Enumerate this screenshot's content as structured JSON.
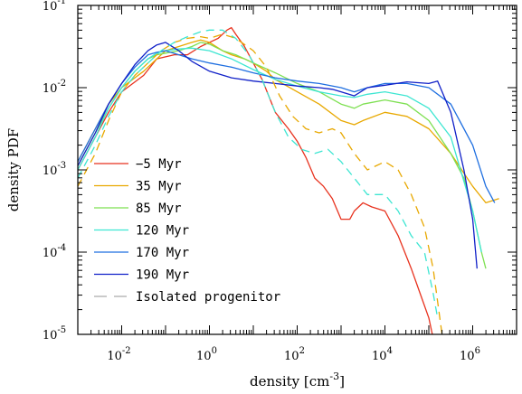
{
  "chart_data": {
    "type": "line",
    "xscale": "log",
    "yscale": "log",
    "xlim": [
      0.001,
      10000000
    ],
    "ylim": [
      1e-05,
      0.1
    ],
    "xlabel": "density [cm",
    "xlabel_sup": "-3",
    "xlabel_close": "]",
    "ylabel": "density PDF",
    "x_ticks": [
      {
        "value": 0.01,
        "base": "10",
        "exp": "-2"
      },
      {
        "value": 1,
        "base": "10",
        "exp": "0"
      },
      {
        "value": 100,
        "base": "10",
        "exp": "2"
      },
      {
        "value": 10000,
        "base": "10",
        "exp": "4"
      },
      {
        "value": 1000000,
        "base": "10",
        "exp": "6"
      }
    ],
    "y_ticks": [
      {
        "value": 1e-05,
        "base": "10",
        "exp": "-5"
      },
      {
        "value": 0.0001,
        "base": "10",
        "exp": "-4"
      },
      {
        "value": 0.001,
        "base": "10",
        "exp": "-3"
      },
      {
        "value": 0.01,
        "base": "10",
        "exp": "-2"
      },
      {
        "value": 0.1,
        "base": "10",
        "exp": "-1"
      }
    ],
    "legend_position": "bottom-left",
    "series": [
      {
        "name": "−5 Myr",
        "color": "#e8321e",
        "style": "solid",
        "points": [
          [
            -3,
            -3.0
          ],
          [
            -2.6,
            -2.6
          ],
          [
            -2.3,
            -2.3
          ],
          [
            -2,
            -2.05
          ],
          [
            -1.5,
            -1.85
          ],
          [
            -1.2,
            -1.65
          ],
          [
            -0.8,
            -1.6
          ],
          [
            -0.5,
            -1.6
          ],
          [
            -0.2,
            -1.5
          ],
          [
            0,
            -1.45
          ],
          [
            0.2,
            -1.4
          ],
          [
            0.4,
            -1.3
          ],
          [
            0.5,
            -1.27
          ],
          [
            0.6,
            -1.35
          ],
          [
            0.8,
            -1.5
          ],
          [
            1,
            -1.7
          ],
          [
            1.2,
            -1.9
          ],
          [
            1.5,
            -2.3
          ],
          [
            1.8,
            -2.5
          ],
          [
            2,
            -2.65
          ],
          [
            2.2,
            -2.85
          ],
          [
            2.4,
            -3.1
          ],
          [
            2.6,
            -3.2
          ],
          [
            2.8,
            -3.35
          ],
          [
            3,
            -3.6
          ],
          [
            3.2,
            -3.6
          ],
          [
            3.3,
            -3.5
          ],
          [
            3.5,
            -3.4
          ],
          [
            3.7,
            -3.45
          ],
          [
            4,
            -3.5
          ],
          [
            4.3,
            -3.8
          ],
          [
            4.6,
            -4.2
          ],
          [
            4.8,
            -4.5
          ],
          [
            5,
            -4.8
          ],
          [
            5.2,
            -5.3
          ],
          [
            5.3,
            -5.4
          ]
        ]
      },
      {
        "name": "35 Myr",
        "color": "#e8a800",
        "style": "solid",
        "points": [
          [
            -3,
            -2.9
          ],
          [
            -2.6,
            -2.5
          ],
          [
            -2.3,
            -2.2
          ],
          [
            -2,
            -2.0
          ],
          [
            -1.5,
            -1.8
          ],
          [
            -1.2,
            -1.65
          ],
          [
            -1,
            -1.55
          ],
          [
            -0.7,
            -1.5
          ],
          [
            -0.4,
            -1.45
          ],
          [
            -0.2,
            -1.42
          ],
          [
            0,
            -1.45
          ],
          [
            0.3,
            -1.55
          ],
          [
            0.5,
            -1.6
          ],
          [
            0.8,
            -1.65
          ],
          [
            1,
            -1.7
          ],
          [
            1.3,
            -1.8
          ],
          [
            1.5,
            -1.9
          ],
          [
            2,
            -2.05
          ],
          [
            2.5,
            -2.2
          ],
          [
            3,
            -2.4
          ],
          [
            3.3,
            -2.45
          ],
          [
            3.5,
            -2.4
          ],
          [
            4,
            -2.3
          ],
          [
            4.5,
            -2.35
          ],
          [
            5,
            -2.5
          ],
          [
            5.5,
            -2.8
          ],
          [
            6,
            -3.2
          ],
          [
            6.3,
            -3.4
          ],
          [
            6.6,
            -3.35
          ]
        ]
      },
      {
        "name": "85 Myr",
        "color": "#7ee052",
        "style": "solid",
        "points": [
          [
            -3,
            -2.95
          ],
          [
            -2.6,
            -2.55
          ],
          [
            -2.3,
            -2.25
          ],
          [
            -2,
            -2.0
          ],
          [
            -1.7,
            -1.8
          ],
          [
            -1.4,
            -1.65
          ],
          [
            -1.2,
            -1.6
          ],
          [
            -1,
            -1.58
          ],
          [
            -0.7,
            -1.55
          ],
          [
            -0.4,
            -1.5
          ],
          [
            -0.2,
            -1.45
          ],
          [
            0,
            -1.47
          ],
          [
            0.3,
            -1.55
          ],
          [
            0.6,
            -1.6
          ],
          [
            1,
            -1.7
          ],
          [
            1.5,
            -1.82
          ],
          [
            2,
            -1.95
          ],
          [
            2.5,
            -2.05
          ],
          [
            3,
            -2.2
          ],
          [
            3.3,
            -2.25
          ],
          [
            3.5,
            -2.2
          ],
          [
            4,
            -2.15
          ],
          [
            4.5,
            -2.2
          ],
          [
            5,
            -2.4
          ],
          [
            5.5,
            -2.8
          ],
          [
            5.8,
            -3.1
          ],
          [
            6,
            -3.5
          ],
          [
            6.2,
            -4.0
          ],
          [
            6.3,
            -4.2
          ]
        ]
      },
      {
        "name": "120 Myr",
        "color": "#3ee6d2",
        "style": "solid",
        "points": [
          [
            -3,
            -3.0
          ],
          [
            -2.6,
            -2.6
          ],
          [
            -2.3,
            -2.25
          ],
          [
            -2,
            -2.0
          ],
          [
            -1.7,
            -1.8
          ],
          [
            -1.4,
            -1.65
          ],
          [
            -1.2,
            -1.58
          ],
          [
            -1,
            -1.55
          ],
          [
            -0.7,
            -1.53
          ],
          [
            -0.4,
            -1.52
          ],
          [
            0,
            -1.55
          ],
          [
            0.5,
            -1.65
          ],
          [
            1,
            -1.78
          ],
          [
            1.5,
            -1.9
          ],
          [
            2,
            -1.98
          ],
          [
            2.5,
            -2.05
          ],
          [
            3,
            -2.1
          ],
          [
            3.3,
            -2.12
          ],
          [
            3.6,
            -2.08
          ],
          [
            4,
            -2.05
          ],
          [
            4.5,
            -2.1
          ],
          [
            5,
            -2.25
          ],
          [
            5.5,
            -2.6
          ],
          [
            6,
            -3.5
          ],
          [
            6.2,
            -4.0
          ]
        ]
      },
      {
        "name": "170 Myr",
        "color": "#1f6fe0",
        "style": "solid",
        "points": [
          [
            -3,
            -2.9
          ],
          [
            -2.6,
            -2.5
          ],
          [
            -2.3,
            -2.2
          ],
          [
            -2,
            -1.95
          ],
          [
            -1.7,
            -1.75
          ],
          [
            -1.4,
            -1.6
          ],
          [
            -1.2,
            -1.57
          ],
          [
            -1,
            -1.55
          ],
          [
            -0.7,
            -1.6
          ],
          [
            -0.4,
            -1.65
          ],
          [
            0,
            -1.7
          ],
          [
            0.5,
            -1.75
          ],
          [
            1,
            -1.82
          ],
          [
            1.5,
            -1.88
          ],
          [
            2,
            -1.92
          ],
          [
            2.5,
            -1.95
          ],
          [
            3,
            -2.0
          ],
          [
            3.3,
            -2.05
          ],
          [
            3.6,
            -2.0
          ],
          [
            4,
            -1.95
          ],
          [
            4.5,
            -1.95
          ],
          [
            5,
            -2.0
          ],
          [
            5.5,
            -2.2
          ],
          [
            6,
            -2.7
          ],
          [
            6.3,
            -3.2
          ],
          [
            6.5,
            -3.4
          ]
        ]
      },
      {
        "name": "190 Myr",
        "color": "#1020c8",
        "style": "solid",
        "points": [
          [
            -3,
            -2.95
          ],
          [
            -2.6,
            -2.55
          ],
          [
            -2.3,
            -2.2
          ],
          [
            -2,
            -1.95
          ],
          [
            -1.7,
            -1.72
          ],
          [
            -1.4,
            -1.55
          ],
          [
            -1.2,
            -1.48
          ],
          [
            -1,
            -1.45
          ],
          [
            -0.7,
            -1.55
          ],
          [
            -0.4,
            -1.68
          ],
          [
            0,
            -1.8
          ],
          [
            0.5,
            -1.88
          ],
          [
            1,
            -1.92
          ],
          [
            1.5,
            -1.95
          ],
          [
            2,
            -1.98
          ],
          [
            2.5,
            -2.0
          ],
          [
            2.8,
            -2.02
          ],
          [
            3,
            -2.05
          ],
          [
            3.3,
            -2.1
          ],
          [
            3.6,
            -2.0
          ],
          [
            4,
            -1.97
          ],
          [
            4.5,
            -1.93
          ],
          [
            5,
            -1.95
          ],
          [
            5.2,
            -1.92
          ],
          [
            5.5,
            -2.3
          ],
          [
            5.8,
            -3.0
          ],
          [
            6,
            -3.6
          ],
          [
            6.1,
            -4.2
          ]
        ]
      },
      {
        "name": "Isolated progenitor",
        "color": "#aaaaaa",
        "style": "dashed",
        "legend_only": true,
        "points": []
      },
      {
        "name": "",
        "color": "#e8a800",
        "style": "dashed",
        "legend_only": false,
        "points": [
          [
            -3,
            -3.2
          ],
          [
            -2.6,
            -2.8
          ],
          [
            -2.3,
            -2.4
          ],
          [
            -2,
            -2.05
          ],
          [
            -1.7,
            -1.85
          ],
          [
            -1.4,
            -1.7
          ],
          [
            -1.1,
            -1.55
          ],
          [
            -0.8,
            -1.45
          ],
          [
            -0.5,
            -1.4
          ],
          [
            -0.2,
            -1.38
          ],
          [
            0,
            -1.4
          ],
          [
            0.3,
            -1.35
          ],
          [
            0.6,
            -1.4
          ],
          [
            1,
            -1.55
          ],
          [
            1.3,
            -1.75
          ],
          [
            1.6,
            -2.1
          ],
          [
            1.9,
            -2.35
          ],
          [
            2.2,
            -2.5
          ],
          [
            2.5,
            -2.55
          ],
          [
            2.8,
            -2.5
          ],
          [
            3,
            -2.55
          ],
          [
            3.3,
            -2.8
          ],
          [
            3.6,
            -3.0
          ],
          [
            4,
            -2.9
          ],
          [
            4.3,
            -3.0
          ],
          [
            4.6,
            -3.3
          ],
          [
            4.9,
            -3.7
          ],
          [
            5.1,
            -4.2
          ],
          [
            5.3,
            -5.0
          ],
          [
            5.4,
            -5.3
          ]
        ]
      },
      {
        "name": "",
        "color": "#3ee6d2",
        "style": "dashed",
        "legend_only": false,
        "points": [
          [
            -3,
            -3.1
          ],
          [
            -2.6,
            -2.7
          ],
          [
            -2.3,
            -2.35
          ],
          [
            -2,
            -2.05
          ],
          [
            -1.7,
            -1.85
          ],
          [
            -1.4,
            -1.7
          ],
          [
            -1.1,
            -1.55
          ],
          [
            -0.8,
            -1.45
          ],
          [
            -0.5,
            -1.38
          ],
          [
            -0.2,
            -1.32
          ],
          [
            0,
            -1.3
          ],
          [
            0.3,
            -1.3
          ],
          [
            0.6,
            -1.4
          ],
          [
            0.9,
            -1.6
          ],
          [
            1.2,
            -1.9
          ],
          [
            1.5,
            -2.3
          ],
          [
            1.8,
            -2.6
          ],
          [
            2.1,
            -2.75
          ],
          [
            2.4,
            -2.8
          ],
          [
            2.7,
            -2.75
          ],
          [
            3,
            -2.9
          ],
          [
            3.3,
            -3.1
          ],
          [
            3.6,
            -3.3
          ],
          [
            4,
            -3.3
          ],
          [
            4.3,
            -3.5
          ],
          [
            4.6,
            -3.8
          ],
          [
            4.9,
            -4.0
          ],
          [
            5.1,
            -4.5
          ],
          [
            5.2,
            -4.8
          ]
        ]
      }
    ]
  }
}
